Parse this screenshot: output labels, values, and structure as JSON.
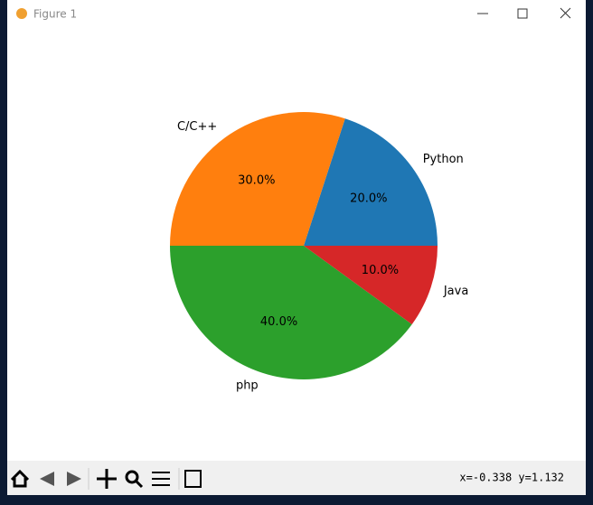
{
  "window": {
    "title": "Figure 1",
    "status": "x=-0.338 y=1.132"
  },
  "chart_data": {
    "type": "pie",
    "categories": [
      "Python",
      "C/C++",
      "php",
      "Java"
    ],
    "values": [
      20,
      30,
      40,
      10
    ],
    "value_labels": [
      "20.0%",
      "30.0%",
      "40.0%",
      "10.0%"
    ],
    "colors": [
      "#1f77b4",
      "#ff7f0e",
      "#2ca02c",
      "#d62728"
    ],
    "start_angle": 0
  }
}
